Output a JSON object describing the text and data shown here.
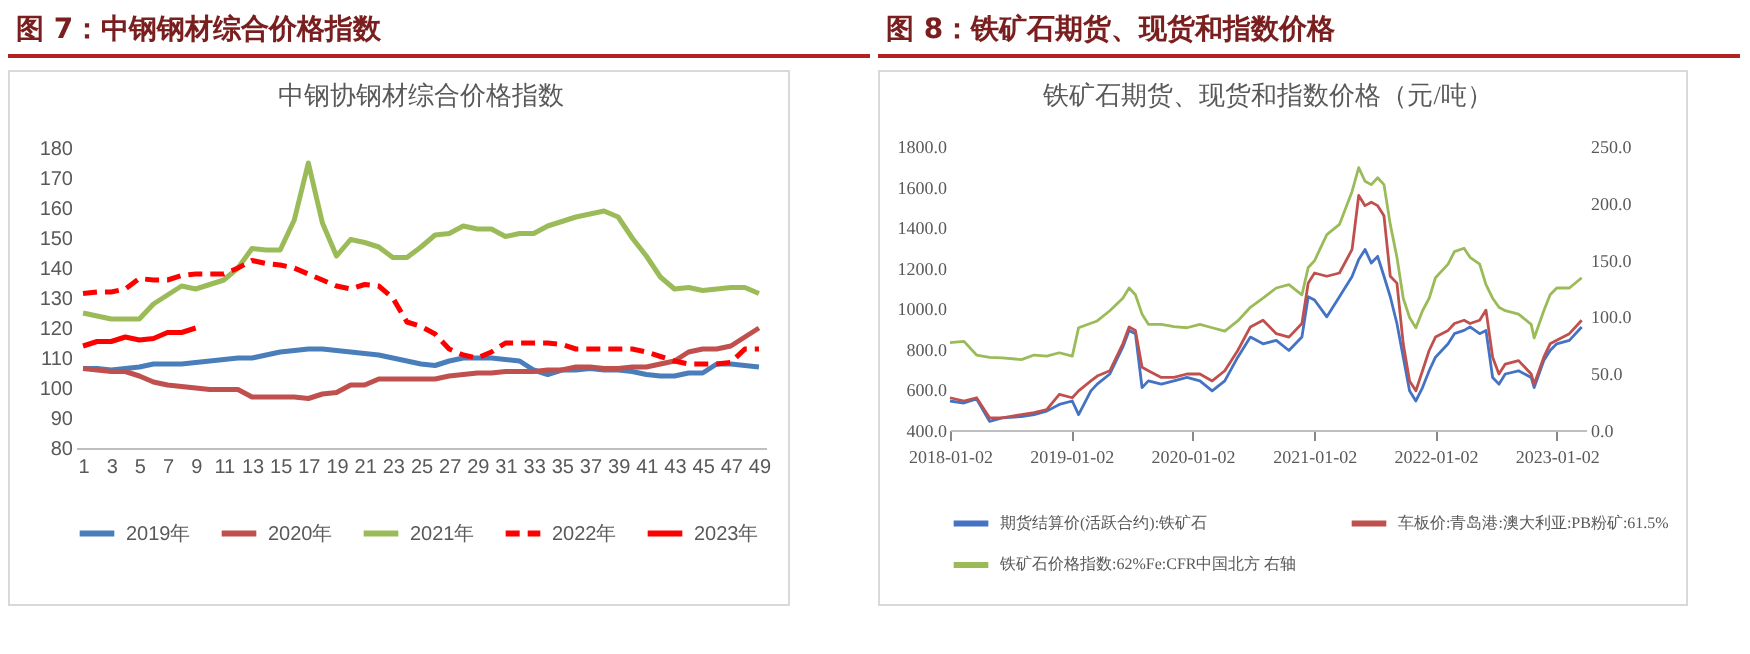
{
  "chart_data": [
    {
      "type": "line",
      "title": "图 7：中钢钢材综合价格指数",
      "subtitle": "中钢协钢材综合价格指数",
      "x": [
        1,
        2,
        3,
        4,
        5,
        6,
        7,
        8,
        9,
        10,
        11,
        12,
        13,
        14,
        15,
        16,
        17,
        18,
        19,
        20,
        21,
        22,
        23,
        24,
        25,
        26,
        27,
        28,
        29,
        30,
        31,
        32,
        33,
        34,
        35,
        36,
        37,
        38,
        39,
        40,
        41,
        42,
        43,
        44,
        45,
        46,
        47,
        48,
        49
      ],
      "xlim": [
        0.5,
        49.5
      ],
      "xticks": [
        1,
        3,
        5,
        7,
        9,
        11,
        13,
        15,
        17,
        19,
        21,
        23,
        25,
        27,
        29,
        31,
        33,
        35,
        37,
        39,
        41,
        43,
        45,
        47,
        49
      ],
      "ylim": [
        80,
        180
      ],
      "yticks": [
        80,
        90,
        100,
        110,
        120,
        130,
        140,
        150,
        160,
        170,
        180
      ],
      "legend": "bottom",
      "series": [
        {
          "name": "2019年",
          "color": "#4a7ebb",
          "values": [
            106.5,
            106.5,
            106,
            106.5,
            107,
            108,
            108,
            108,
            108.5,
            109,
            109.5,
            110,
            110,
            111,
            112,
            112.5,
            113,
            113,
            112.5,
            112,
            111.5,
            111,
            110,
            109,
            108,
            107.5,
            109,
            110,
            110,
            110,
            109.5,
            109,
            106,
            104.5,
            106,
            106,
            106.5,
            106,
            106,
            105.5,
            104.5,
            104,
            104,
            105,
            105,
            108,
            108,
            107.5,
            107
          ]
        },
        {
          "name": "2020年",
          "color": "#c0504d",
          "values": [
            106.5,
            106,
            105.5,
            105.5,
            104,
            102,
            101,
            100.5,
            100,
            99.5,
            99.5,
            99.5,
            97,
            97,
            97,
            97,
            96.5,
            98,
            98.5,
            101,
            101,
            103,
            103,
            103,
            103,
            103,
            104,
            104.5,
            105,
            105,
            105.5,
            105.5,
            105.5,
            106,
            106,
            107,
            107,
            106.5,
            106.5,
            107,
            107,
            108,
            109,
            112,
            113,
            113,
            114,
            117,
            120
          ]
        },
        {
          "name": "2021年",
          "color": "#9bbb59",
          "values": [
            125,
            124,
            123,
            123,
            123,
            128,
            131,
            134,
            133,
            134.5,
            136,
            140,
            146.5,
            146,
            146,
            156,
            175,
            155,
            144,
            149.5,
            148.5,
            147,
            143.5,
            143.5,
            147,
            151,
            151.5,
            154,
            153,
            153,
            150.5,
            151.5,
            151.5,
            154,
            155.5,
            157,
            158,
            159,
            157,
            150,
            144,
            137,
            133,
            133.5,
            132.5,
            133,
            133.5,
            133.5,
            131.5
          ]
        },
        {
          "name": "2022年",
          "color": "#ff0000",
          "line_style": "dashed",
          "values": [
            131.5,
            132,
            132,
            133,
            136.5,
            136,
            136,
            137.5,
            138,
            138,
            138,
            140,
            142.5,
            141.5,
            141,
            140,
            138,
            136,
            134,
            133,
            134.5,
            134,
            130,
            122,
            120.5,
            118,
            113,
            111,
            110,
            112,
            115,
            115,
            115,
            115,
            114.5,
            113,
            113,
            113,
            113,
            113,
            112,
            110.5,
            109,
            108,
            108,
            108,
            108.5,
            113,
            113
          ]
        },
        {
          "name": "2023年",
          "color": "#ff0000",
          "x": [
            1,
            2,
            3,
            4,
            5,
            6,
            7,
            8,
            9
          ],
          "values": [
            114,
            115.5,
            115.5,
            117,
            116,
            116.5,
            118.5,
            118.5,
            120
          ]
        }
      ]
    },
    {
      "type": "line",
      "title": "图 8：铁矿石期货、现货和指数价格",
      "subtitle": "铁矿石期货、现货和指数价格（元/吨）",
      "x": [
        "2018-01-02",
        "2018-02-13",
        "2018-03-23",
        "2018-05-01",
        "2018-06-08",
        "2018-08-05",
        "2018-09-12",
        "2018-10-20",
        "2018-11-27",
        "2019-01-05",
        "2019-01-24",
        "2019-03-02",
        "2019-03-21",
        "2019-04-28",
        "2019-06-06",
        "2019-06-25",
        "2019-07-14",
        "2019-08-03",
        "2019-08-22",
        "2019-09-30",
        "2019-11-07",
        "2019-12-16",
        "2020-01-24",
        "2020-03-01",
        "2020-04-08",
        "2020-05-17",
        "2020-06-24",
        "2020-08-01",
        "2020-09-10",
        "2020-10-18",
        "2020-11-26",
        "2020-12-15",
        "2021-01-03",
        "2021-02-09",
        "2021-03-19",
        "2021-04-26",
        "2021-05-16",
        "2021-06-04",
        "2021-06-23",
        "2021-07-12",
        "2021-07-31",
        "2021-08-19",
        "2021-09-08",
        "2021-09-27",
        "2021-10-16",
        "2021-11-04",
        "2021-11-24",
        "2021-12-14",
        "2022-01-02",
        "2022-02-09",
        "2022-02-28",
        "2022-03-29",
        "2022-04-16",
        "2022-05-15",
        "2022-06-03",
        "2022-06-23",
        "2022-07-12",
        "2022-07-31",
        "2022-09-09",
        "2022-10-17",
        "2022-10-26",
        "2022-11-24",
        "2022-12-13",
        "2023-01-02",
        "2023-02-09",
        "2023-03-18"
      ],
      "xlim": [
        "2018-01-02",
        "2023-03-31"
      ],
      "xticks": [
        "2018-01-02",
        "2019-01-02",
        "2020-01-02",
        "2021-01-02",
        "2022-01-02",
        "2023-01-02"
      ],
      "ylim": [
        400,
        1800
      ],
      "yticks": [
        {
          "value": 400,
          "label": "400.0"
        },
        {
          "value": 600,
          "label": "600.0"
        },
        {
          "value": 800,
          "label": "800.0"
        },
        {
          "value": 1000,
          "label": "1000.0"
        },
        {
          "value": 1200,
          "label": "1200.0"
        },
        {
          "value": 1400,
          "label": "1400.0"
        },
        {
          "value": 1600,
          "label": "1600.0"
        },
        {
          "value": 1800,
          "label": "1800.0"
        }
      ],
      "y2lim": [
        0,
        250
      ],
      "y2ticks": [
        {
          "value": 0,
          "label": "0.0"
        },
        {
          "value": 50,
          "label": "50.0"
        },
        {
          "value": 100,
          "label": "100.0"
        },
        {
          "value": 150,
          "label": "150.0"
        },
        {
          "value": 200,
          "label": "200.0"
        },
        {
          "value": 250,
          "label": "250.0"
        }
      ],
      "legend": "bottom",
      "series": [
        {
          "name": "期货结算价(活跃合约):铁矿石",
          "color": "#4472c4",
          "values": [
            543,
            533,
            553,
            443,
            460,
            466,
            476,
            493,
            526,
            543,
            476,
            593,
            626,
            676,
            808,
            891,
            875,
            609,
            642,
            626,
            642,
            659,
            642,
            593,
            642,
            759,
            858,
            825,
            842,
            792,
            858,
            1057,
            1041,
            958,
            1057,
            1157,
            1240,
            1290,
            1223,
            1256,
            1158,
            1057,
            925,
            759,
            593,
            543,
            609,
            692,
            759,
            825,
            875,
            891,
            908,
            875,
            891,
            659,
            626,
            676,
            692,
            659,
            609,
            742,
            792,
            825,
            842,
            908
          ]
        },
        {
          "name": "车板价:青岛港:澳大利亚:PB粉矿:61.5%",
          "color": "#c0504d",
          "values": [
            559,
            543,
            559,
            460,
            460,
            476,
            486,
            500,
            576,
            559,
            593,
            642,
            666,
            692,
            825,
            908,
            891,
            709,
            692,
            659,
            659,
            676,
            676,
            642,
            692,
            792,
            908,
            941,
            875,
            858,
            925,
            1124,
            1174,
            1158,
            1174,
            1290,
            1556,
            1506,
            1523,
            1506,
            1456,
            1158,
            1124,
            825,
            642,
            593,
            692,
            792,
            858,
            891,
            925,
            941,
            925,
            941,
            991,
            759,
            676,
            725,
            742,
            676,
            626,
            759,
            825,
            842,
            875,
            941
          ]
        },
        {
          "name": "铁矿石价格指数:62%Fe:CFR中国北方 右轴",
          "color": "#9bbb59",
          "axis": "y2",
          "values": [
            77,
            78,
            66,
            64,
            63.5,
            62,
            66,
            65,
            68,
            65,
            90,
            94,
            96,
            105,
            116,
            125,
            119,
            102,
            93,
            93,
            91,
            90,
            93,
            90,
            87,
            96,
            108,
            116,
            125,
            128,
            119,
            143,
            149,
            172,
            181,
            210,
            231,
            219,
            216,
            222,
            216,
            181,
            152,
            116,
            99,
            90,
            105,
            116,
            134,
            146,
            157,
            160,
            152,
            146,
            128,
            116,
            108,
            105,
            102,
            93,
            81,
            105,
            119,
            125,
            125,
            134
          ]
        }
      ]
    }
  ]
}
